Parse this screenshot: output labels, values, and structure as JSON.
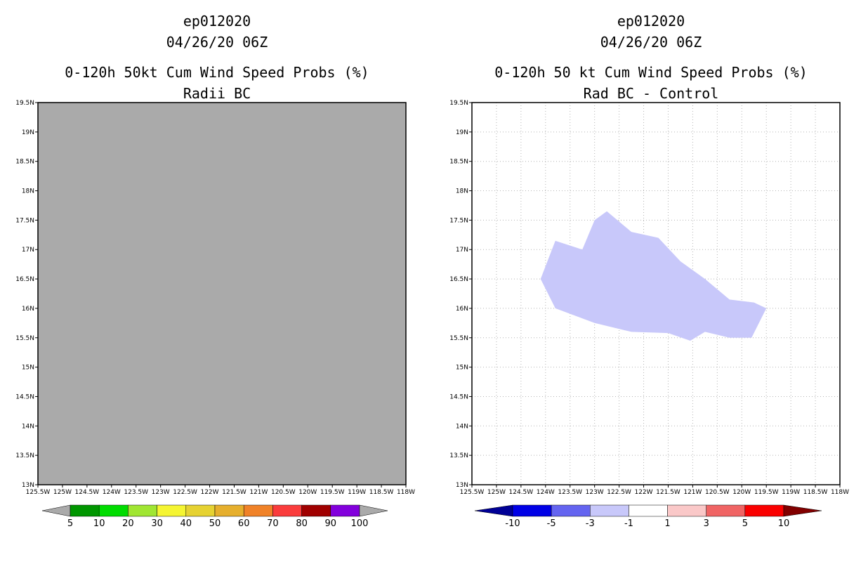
{
  "chart_data": [
    {
      "type": "heatmap",
      "title": [
        "ep012020",
        "04/26/20 06Z",
        "0-120h 50kt Cum Wind Speed Probs (%)",
        "Radii BC"
      ],
      "x_ticks": [
        "125.5W",
        "125W",
        "124.5W",
        "124W",
        "123.5W",
        "123W",
        "122.5W",
        "122W",
        "121.5W",
        "121W",
        "120.5W",
        "120W",
        "119.5W",
        "119W",
        "118.5W",
        "118W"
      ],
      "y_ticks": [
        "19.5N",
        "19N",
        "18.5N",
        "18N",
        "17.5N",
        "17N",
        "16.5N",
        "16N",
        "15.5N",
        "15N",
        "14.5N",
        "14N",
        "13.5N",
        "13N"
      ],
      "xlim": [
        -125.5,
        -118
      ],
      "ylim": [
        13,
        19.5
      ],
      "grid": false,
      "background_fill": "#aaaaaa",
      "colorbar": {
        "labels": [
          "5",
          "10",
          "20",
          "30",
          "40",
          "50",
          "60",
          "70",
          "80",
          "90",
          "100"
        ],
        "colors": [
          "#009600",
          "#00dc00",
          "#a0e632",
          "#f5f532",
          "#e6d232",
          "#e6af2d",
          "#f08228",
          "#fa3c3c",
          "#a00000",
          "#8200dc"
        ],
        "under_color": "#aaaaaa",
        "over_color": "#aaaaaa"
      }
    },
    {
      "type": "heatmap",
      "title": [
        "ep012020",
        "04/26/20 06Z",
        "0-120h 50 kt Cum Wind Speed Probs (%)",
        "Rad BC - Control"
      ],
      "x_ticks": [
        "125.5W",
        "125W",
        "124.5W",
        "124W",
        "123.5W",
        "123W",
        "122.5W",
        "122W",
        "121.5W",
        "121W",
        "120.5W",
        "120W",
        "119.5W",
        "119W",
        "118.5W",
        "118W"
      ],
      "y_ticks": [
        "19.5N",
        "19N",
        "18.5N",
        "18N",
        "17.5N",
        "17N",
        "16.5N",
        "16N",
        "15.5N",
        "15N",
        "14.5N",
        "14N",
        "13.5N",
        "13N"
      ],
      "xlim": [
        -125.5,
        -118
      ],
      "ylim": [
        13,
        19.5
      ],
      "grid": true,
      "region": {
        "value_range": "-3 to -1",
        "color": "#c8c8fa",
        "polygon_lon_lat": [
          [
            -124.1,
            16.5
          ],
          [
            -123.8,
            17.15
          ],
          [
            -123.25,
            17.0
          ],
          [
            -123.0,
            17.5
          ],
          [
            -122.75,
            17.65
          ],
          [
            -122.25,
            17.3
          ],
          [
            -121.7,
            17.2
          ],
          [
            -121.25,
            16.8
          ],
          [
            -120.75,
            16.5
          ],
          [
            -120.25,
            16.15
          ],
          [
            -119.75,
            16.1
          ],
          [
            -119.5,
            16.0
          ],
          [
            -119.8,
            15.5
          ],
          [
            -120.25,
            15.5
          ],
          [
            -120.75,
            15.6
          ],
          [
            -121.05,
            15.45
          ],
          [
            -121.5,
            15.58
          ],
          [
            -122.25,
            15.6
          ],
          [
            -123.0,
            15.75
          ],
          [
            -123.8,
            16.0
          ]
        ]
      },
      "colorbar": {
        "labels": [
          "-10",
          "-5",
          "-3",
          "-1",
          "1",
          "3",
          "5",
          "10"
        ],
        "colors": [
          "#0000e6",
          "#6464f0",
          "#c8c8fa",
          "#ffffff",
          "#fac8c8",
          "#f06464",
          "#fa0000"
        ],
        "under_color": "#000096",
        "over_color": "#820000"
      }
    }
  ]
}
